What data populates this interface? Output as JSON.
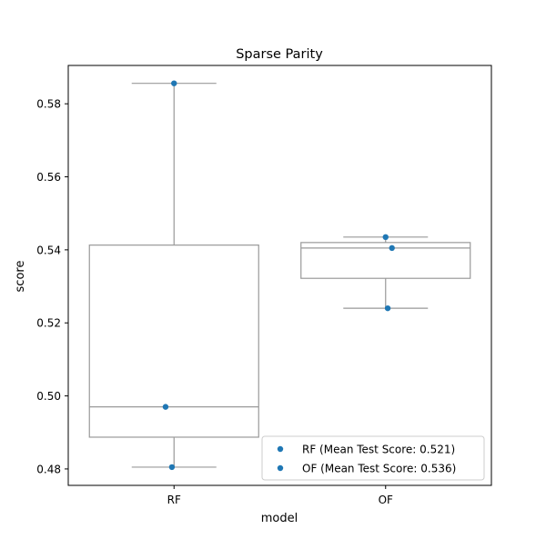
{
  "chart_data": {
    "type": "box",
    "title": "Sparse Parity",
    "xlabel": "model",
    "ylabel": "score",
    "categories": [
      "RF",
      "OF"
    ],
    "ylim": [
      0.4755,
      0.5905
    ],
    "yticks": [
      0.48,
      0.5,
      0.52,
      0.54,
      0.56,
      0.58
    ],
    "ytick_labels": [
      "0.48",
      "0.50",
      "0.52",
      "0.54",
      "0.56",
      "0.58"
    ],
    "grid": false,
    "boxes": [
      {
        "name": "RF",
        "whisker_low": 0.4805,
        "q1": 0.4887,
        "median": 0.497,
        "q3": 0.5413,
        "whisker_high": 0.5856
      },
      {
        "name": "OF",
        "whisker_low": 0.524,
        "q1": 0.5322,
        "median": 0.5405,
        "q3": 0.542,
        "whisker_high": 0.5435
      }
    ],
    "points": [
      {
        "series": 0,
        "category": "RF",
        "jitter": 0.0,
        "y": 0.5856
      },
      {
        "series": 0,
        "category": "RF",
        "jitter": -0.04,
        "y": 0.497
      },
      {
        "series": 0,
        "category": "RF",
        "jitter": -0.01,
        "y": 0.4805
      },
      {
        "series": 1,
        "category": "OF",
        "jitter": 0.0,
        "y": 0.5435
      },
      {
        "series": 1,
        "category": "OF",
        "jitter": 0.03,
        "y": 0.5405
      },
      {
        "series": 1,
        "category": "OF",
        "jitter": 0.01,
        "y": 0.524
      }
    ],
    "series": [
      {
        "name": "RF (Mean Test Score: 0.521)",
        "color": "#1f77b4"
      },
      {
        "name": "OF (Mean Test Score: 0.536)",
        "color": "#1f77b4"
      }
    ],
    "legend_position": "lower-right",
    "box_color": "#999999",
    "axis_color": "#000000"
  }
}
